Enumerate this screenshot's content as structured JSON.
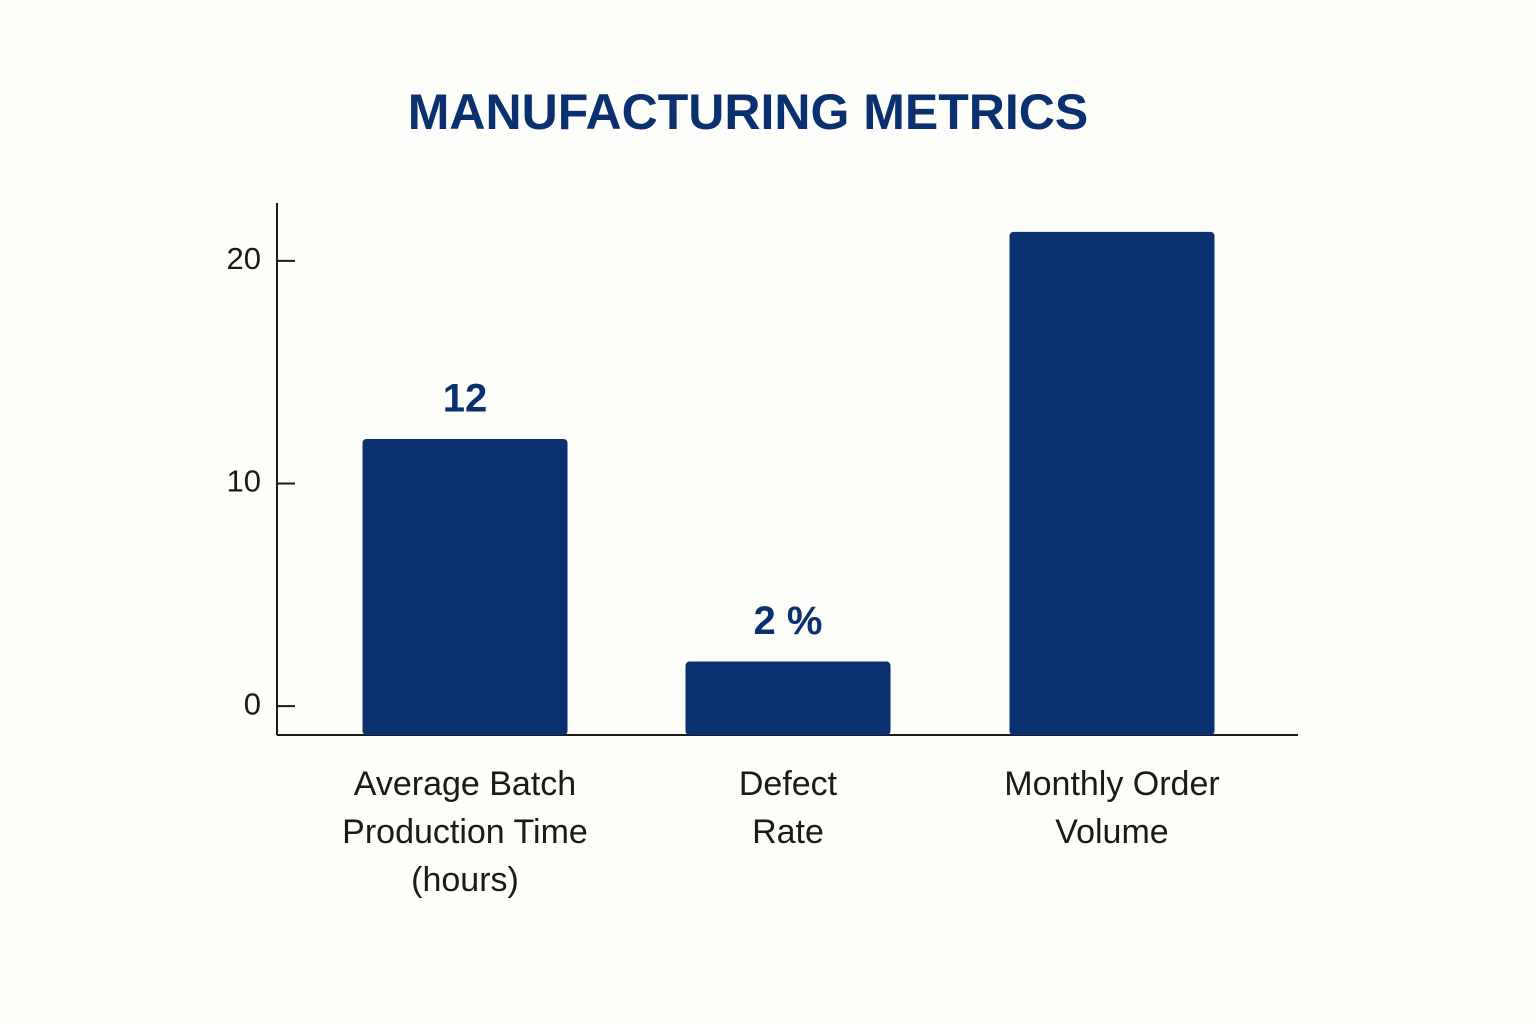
{
  "chart_data": {
    "type": "bar",
    "title": "MANUFACTURING METRICS",
    "categories": [
      "Average Batch Production Time (hours)",
      "Defect Rate",
      "Monthly Order Volume"
    ],
    "values": [
      12,
      2,
      21.3
    ],
    "value_labels": [
      "12",
      "2 %",
      null
    ],
    "color": "#0a3070",
    "ylim": [
      -1.3,
      22.6
    ],
    "yticks": [
      0,
      10,
      20
    ]
  }
}
